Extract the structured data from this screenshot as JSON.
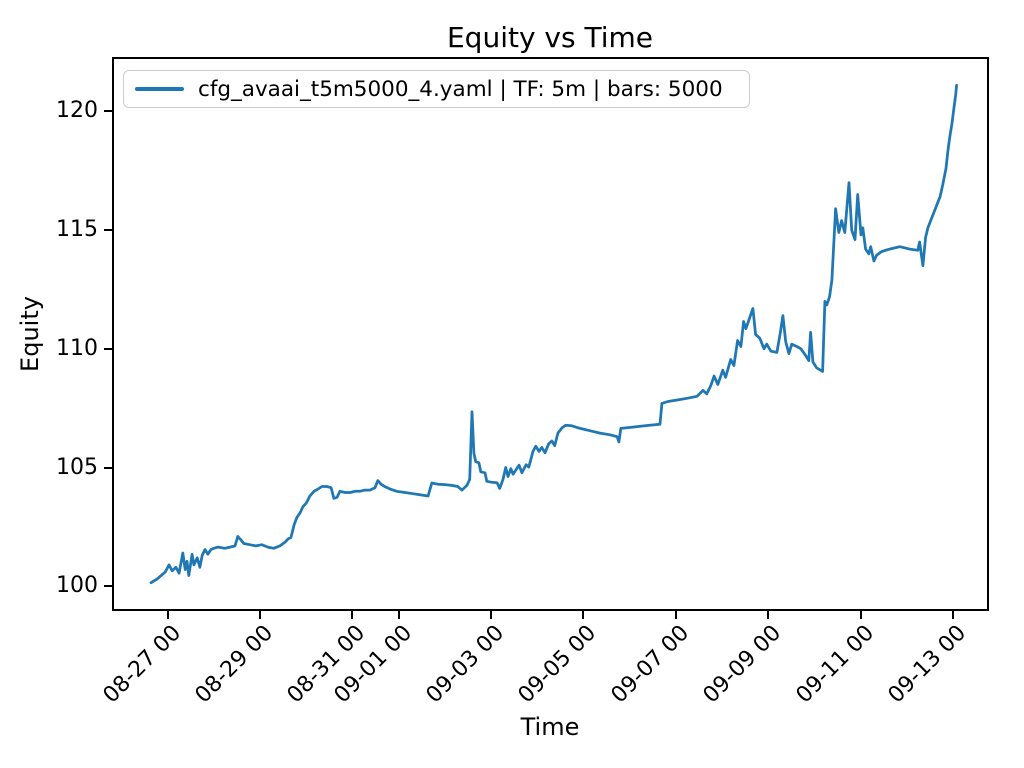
{
  "title": "Equity vs Time",
  "legend": {
    "entries": [
      {
        "label": "cfg_avaai_t5m5000_4.yaml | TF: 5m | bars: 5000",
        "color": "#1f77b4"
      }
    ]
  },
  "chart_data": {
    "type": "line",
    "title": "Equity vs Time",
    "xlabel": "Time",
    "ylabel": "Equity",
    "grid": false,
    "legend_position": "upper left",
    "x_unit": "days since 08-26 00:00 (datetime axis)",
    "xlim": [
      -0.182,
      18.76
    ],
    "ylim": [
      99.0,
      122.25
    ],
    "x_ticks": [
      {
        "d": 1,
        "label": "08-27 00"
      },
      {
        "d": 3,
        "label": "08-29 00"
      },
      {
        "d": 5,
        "label": "08-31 00"
      },
      {
        "d": 6,
        "label": "09-01 00"
      },
      {
        "d": 8,
        "label": "09-03 00"
      },
      {
        "d": 10,
        "label": "09-05 00"
      },
      {
        "d": 12,
        "label": "09-07 00"
      },
      {
        "d": 14,
        "label": "09-09 00"
      },
      {
        "d": 16,
        "label": "09-11 00"
      },
      {
        "d": 18,
        "label": "09-13 00"
      }
    ],
    "y_ticks": [
      {
        "v": 100,
        "label": "100"
      },
      {
        "v": 105,
        "label": "105"
      },
      {
        "v": 110,
        "label": "110"
      },
      {
        "v": 115,
        "label": "115"
      },
      {
        "v": 120,
        "label": "120"
      }
    ],
    "series": [
      {
        "name": "cfg_avaai_t5m5000_4.yaml | TF: 5m | bars: 5000",
        "color": "#1f77b4",
        "points": [
          [
            0.64,
            100.15
          ],
          [
            0.77,
            100.3
          ],
          [
            0.86,
            100.45
          ],
          [
            0.95,
            100.6
          ],
          [
            1.03,
            100.9
          ],
          [
            1.1,
            100.65
          ],
          [
            1.18,
            100.8
          ],
          [
            1.25,
            100.55
          ],
          [
            1.33,
            101.4
          ],
          [
            1.38,
            100.7
          ],
          [
            1.42,
            101.05
          ],
          [
            1.46,
            100.45
          ],
          [
            1.53,
            101.35
          ],
          [
            1.57,
            100.9
          ],
          [
            1.64,
            101.2
          ],
          [
            1.7,
            100.8
          ],
          [
            1.75,
            101.3
          ],
          [
            1.81,
            101.55
          ],
          [
            1.87,
            101.35
          ],
          [
            1.94,
            101.55
          ],
          [
            2.0,
            101.6
          ],
          [
            2.09,
            101.65
          ],
          [
            2.24,
            101.6
          ],
          [
            2.35,
            101.65
          ],
          [
            2.46,
            101.7
          ],
          [
            2.52,
            102.1
          ],
          [
            2.59,
            101.95
          ],
          [
            2.65,
            101.8
          ],
          [
            2.78,
            101.75
          ],
          [
            2.91,
            101.7
          ],
          [
            3.04,
            101.75
          ],
          [
            3.17,
            101.65
          ],
          [
            3.3,
            101.6
          ],
          [
            3.43,
            101.7
          ],
          [
            3.54,
            101.85
          ],
          [
            3.61,
            102.0
          ],
          [
            3.67,
            102.05
          ],
          [
            3.74,
            102.6
          ],
          [
            3.8,
            102.9
          ],
          [
            3.87,
            103.1
          ],
          [
            3.93,
            103.35
          ],
          [
            4.0,
            103.5
          ],
          [
            4.08,
            103.8
          ],
          [
            4.17,
            104.0
          ],
          [
            4.26,
            104.1
          ],
          [
            4.34,
            104.2
          ],
          [
            4.45,
            104.2
          ],
          [
            4.54,
            104.15
          ],
          [
            4.6,
            103.7
          ],
          [
            4.67,
            103.75
          ],
          [
            4.73,
            104.0
          ],
          [
            4.84,
            103.95
          ],
          [
            4.95,
            103.95
          ],
          [
            5.06,
            104.0
          ],
          [
            5.16,
            104.0
          ],
          [
            5.27,
            104.05
          ],
          [
            5.38,
            104.05
          ],
          [
            5.49,
            104.15
          ],
          [
            5.55,
            104.45
          ],
          [
            5.62,
            104.3
          ],
          [
            5.7,
            104.2
          ],
          [
            5.81,
            104.1
          ],
          [
            5.96,
            104.0
          ],
          [
            6.14,
            103.95
          ],
          [
            6.31,
            103.9
          ],
          [
            6.48,
            103.85
          ],
          [
            6.64,
            103.8
          ],
          [
            6.72,
            104.35
          ],
          [
            6.85,
            104.3
          ],
          [
            7.0,
            104.28
          ],
          [
            7.15,
            104.25
          ],
          [
            7.28,
            104.2
          ],
          [
            7.37,
            104.05
          ],
          [
            7.48,
            104.25
          ],
          [
            7.54,
            104.5
          ],
          [
            7.59,
            107.35
          ],
          [
            7.63,
            105.6
          ],
          [
            7.67,
            105.25
          ],
          [
            7.74,
            105.2
          ],
          [
            7.78,
            104.82
          ],
          [
            7.87,
            104.78
          ],
          [
            7.91,
            104.42
          ],
          [
            8.02,
            104.38
          ],
          [
            8.13,
            104.36
          ],
          [
            8.19,
            104.12
          ],
          [
            8.26,
            104.5
          ],
          [
            8.32,
            105.0
          ],
          [
            8.37,
            104.62
          ],
          [
            8.43,
            104.95
          ],
          [
            8.48,
            104.72
          ],
          [
            8.54,
            104.9
          ],
          [
            8.61,
            105.1
          ],
          [
            8.67,
            104.78
          ],
          [
            8.76,
            105.12
          ],
          [
            8.82,
            105.02
          ],
          [
            8.91,
            105.68
          ],
          [
            8.97,
            105.9
          ],
          [
            9.04,
            105.68
          ],
          [
            9.1,
            105.85
          ],
          [
            9.17,
            105.62
          ],
          [
            9.25,
            106.0
          ],
          [
            9.32,
            106.12
          ],
          [
            9.38,
            105.92
          ],
          [
            9.45,
            106.45
          ],
          [
            9.54,
            106.68
          ],
          [
            9.62,
            106.78
          ],
          [
            9.75,
            106.76
          ],
          [
            9.93,
            106.65
          ],
          [
            10.14,
            106.55
          ],
          [
            10.36,
            106.45
          ],
          [
            10.58,
            106.38
          ],
          [
            10.73,
            106.3
          ],
          [
            10.77,
            106.08
          ],
          [
            10.81,
            106.65
          ],
          [
            11.05,
            106.7
          ],
          [
            11.33,
            106.76
          ],
          [
            11.66,
            106.82
          ],
          [
            11.7,
            107.7
          ],
          [
            11.83,
            107.78
          ],
          [
            12.05,
            107.85
          ],
          [
            12.26,
            107.92
          ],
          [
            12.46,
            108.0
          ],
          [
            12.59,
            108.25
          ],
          [
            12.67,
            108.1
          ],
          [
            12.76,
            108.45
          ],
          [
            12.83,
            108.85
          ],
          [
            12.91,
            108.5
          ],
          [
            13.02,
            109.1
          ],
          [
            13.08,
            108.8
          ],
          [
            13.19,
            109.55
          ],
          [
            13.26,
            109.3
          ],
          [
            13.34,
            110.35
          ],
          [
            13.41,
            110.1
          ],
          [
            13.47,
            111.15
          ],
          [
            13.52,
            110.85
          ],
          [
            13.6,
            111.3
          ],
          [
            13.67,
            111.7
          ],
          [
            13.73,
            110.6
          ],
          [
            13.82,
            110.45
          ],
          [
            13.91,
            110.0
          ],
          [
            13.97,
            110.2
          ],
          [
            14.06,
            109.9
          ],
          [
            14.19,
            109.85
          ],
          [
            14.27,
            110.75
          ],
          [
            14.32,
            111.4
          ],
          [
            14.38,
            110.3
          ],
          [
            14.45,
            109.8
          ],
          [
            14.51,
            110.2
          ],
          [
            14.62,
            110.1
          ],
          [
            14.71,
            110.0
          ],
          [
            14.82,
            109.7
          ],
          [
            14.88,
            109.5
          ],
          [
            14.92,
            110.7
          ],
          [
            14.97,
            109.45
          ],
          [
            15.05,
            109.2
          ],
          [
            15.18,
            109.05
          ],
          [
            15.23,
            112.0
          ],
          [
            15.27,
            111.85
          ],
          [
            15.33,
            112.2
          ],
          [
            15.38,
            112.9
          ],
          [
            15.46,
            115.9
          ],
          [
            15.53,
            114.9
          ],
          [
            15.59,
            115.4
          ],
          [
            15.66,
            114.9
          ],
          [
            15.75,
            117.0
          ],
          [
            15.81,
            115.0
          ],
          [
            15.88,
            114.6
          ],
          [
            15.94,
            116.5
          ],
          [
            16.01,
            114.8
          ],
          [
            16.05,
            115.1
          ],
          [
            16.11,
            114.2
          ],
          [
            16.18,
            114.0
          ],
          [
            16.22,
            114.3
          ],
          [
            16.29,
            113.7
          ],
          [
            16.35,
            113.95
          ],
          [
            16.46,
            114.1
          ],
          [
            16.63,
            114.2
          ],
          [
            16.85,
            114.3
          ],
          [
            17.07,
            114.2
          ],
          [
            17.24,
            114.15
          ],
          [
            17.28,
            114.5
          ],
          [
            17.35,
            113.5
          ],
          [
            17.41,
            114.7
          ],
          [
            17.46,
            115.1
          ],
          [
            17.52,
            115.4
          ],
          [
            17.59,
            115.75
          ],
          [
            17.65,
            116.05
          ],
          [
            17.72,
            116.4
          ],
          [
            17.78,
            116.9
          ],
          [
            17.85,
            117.6
          ],
          [
            17.89,
            118.3
          ],
          [
            17.93,
            118.9
          ],
          [
            17.98,
            119.5
          ],
          [
            18.02,
            120.1
          ],
          [
            18.06,
            120.7
          ],
          [
            18.08,
            121.1
          ]
        ]
      }
    ]
  }
}
